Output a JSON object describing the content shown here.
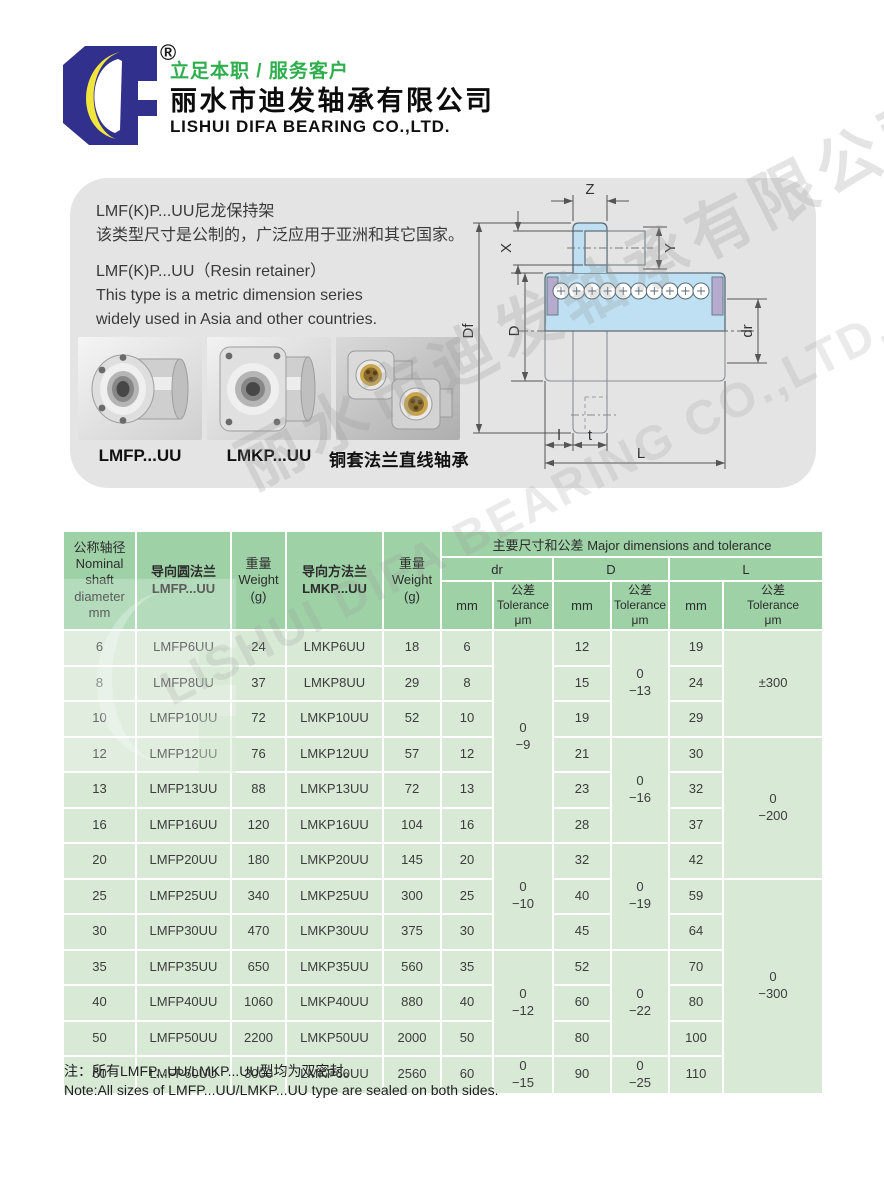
{
  "header": {
    "registered": "®",
    "slogan": "立足本职 / 服务客户",
    "company_cn": "丽水市迪发轴承有限公司",
    "company_en": "LISHUI DIFA BEARING CO.,LTD.",
    "logo_colors": {
      "blue": "#32308d",
      "yellow": "#f0e63c"
    }
  },
  "intro_panel": {
    "cn_title": "LMF(K)P...UU尼龙保持架",
    "cn_desc": "该类型尺寸是公制的，广泛应用于亚洲和其它国家。",
    "en_title": "LMF(K)P...UU（Resin retainer）",
    "en_desc1": "This type is a metric dimension series",
    "en_desc2": "widely used in Asia and other countries.",
    "products": [
      {
        "label": "LMFP...UU"
      },
      {
        "label": "LMKP...UU"
      },
      {
        "label": "铜套法兰直线轴承"
      }
    ],
    "diagram_labels": {
      "z": "Z",
      "x": "X",
      "y": "Y",
      "df": "Df",
      "d": "D",
      "dr": "dr",
      "l": "l",
      "t": "t",
      "L": "L"
    }
  },
  "watermark": {
    "cn": "丽水市迪发轴承有限公司",
    "en": "LISHUI DIFA BEARING CO.,LTD."
  },
  "table": {
    "colors": {
      "header_bg": "#9fd1a7",
      "body_bg": "#d8e9d6",
      "grid": "#ffffff"
    },
    "headers": {
      "shaft": "公称轴径\nNominal\nshaft\ndiameter\nmm",
      "round_flange": "导向圆法兰\nLMFP...UU",
      "weight1": "重量\nWeight\n(g)",
      "square_flange": "导向方法兰\nLMKP...UU",
      "weight2": "重量\nWeight\n(g)",
      "major_cn": "主要尺寸和公差",
      "major_en": "Major dimensions and tolerance",
      "dr": "dr",
      "D": "D",
      "L": "L",
      "mm": "mm",
      "tol": "公差\nTolerance\nμm"
    },
    "rows": [
      [
        {
          "t": "6"
        },
        {
          "t": "LMFP6UU"
        },
        {
          "t": "24"
        },
        {
          "t": "LMKP6UU"
        },
        {
          "t": "18"
        },
        {
          "t": "6"
        },
        {
          "t": "0|−9",
          "rs": 6
        },
        {
          "t": "12"
        },
        {
          "t": "0|−13",
          "rs": 3
        },
        {
          "t": "19"
        },
        {
          "t": "±300",
          "rs": 3
        }
      ],
      [
        {
          "t": "8"
        },
        {
          "t": "LMFP8UU"
        },
        {
          "t": "37"
        },
        {
          "t": "LMKP8UU"
        },
        {
          "t": "29"
        },
        {
          "t": "8"
        },
        {
          "t": "15"
        },
        {
          "t": "24"
        }
      ],
      [
        {
          "t": "10"
        },
        {
          "t": "LMFP10UU"
        },
        {
          "t": "72"
        },
        {
          "t": "LMKP10UU"
        },
        {
          "t": "52"
        },
        {
          "t": "10"
        },
        {
          "t": "19"
        },
        {
          "t": "29"
        }
      ],
      [
        {
          "t": "12"
        },
        {
          "t": "LMFP12UU"
        },
        {
          "t": "76"
        },
        {
          "t": "LMKP12UU"
        },
        {
          "t": "57"
        },
        {
          "t": "12"
        },
        {
          "t": "21"
        },
        {
          "t": "0|−16",
          "rs": 3
        },
        {
          "t": "30"
        },
        {
          "t": "0|−200",
          "rs": 4
        }
      ],
      [
        {
          "t": "13"
        },
        {
          "t": "LMFP13UU"
        },
        {
          "t": "88"
        },
        {
          "t": "LMKP13UU"
        },
        {
          "t": "72"
        },
        {
          "t": "13"
        },
        {
          "t": "23"
        },
        {
          "t": "32"
        }
      ],
      [
        {
          "t": "16"
        },
        {
          "t": "LMFP16UU"
        },
        {
          "t": "120"
        },
        {
          "t": "LMKP16UU"
        },
        {
          "t": "104"
        },
        {
          "t": "16"
        },
        {
          "t": "28"
        },
        {
          "t": "37"
        }
      ],
      [
        {
          "t": "20"
        },
        {
          "t": "LMFP20UU"
        },
        {
          "t": "180"
        },
        {
          "t": "LMKP20UU"
        },
        {
          "t": "145"
        },
        {
          "t": "20"
        },
        {
          "t": "0|−10",
          "rs": 3
        },
        {
          "t": "32"
        },
        {
          "t": "0|−19",
          "rs": 3
        },
        {
          "t": "42"
        }
      ],
      [
        {
          "t": "25"
        },
        {
          "t": "LMFP25UU"
        },
        {
          "t": "340"
        },
        {
          "t": "LMKP25UU"
        },
        {
          "t": "300"
        },
        {
          "t": "25"
        },
        {
          "t": "40"
        },
        {
          "t": "59"
        },
        {
          "t": "0|−300",
          "rs": 6
        }
      ],
      [
        {
          "t": "30"
        },
        {
          "t": "LMFP30UU"
        },
        {
          "t": "470"
        },
        {
          "t": "LMKP30UU"
        },
        {
          "t": "375"
        },
        {
          "t": "30"
        },
        {
          "t": "45"
        },
        {
          "t": "64"
        }
      ],
      [
        {
          "t": "35"
        },
        {
          "t": "LMFP35UU"
        },
        {
          "t": "650"
        },
        {
          "t": "LMKP35UU"
        },
        {
          "t": "560"
        },
        {
          "t": "35"
        },
        {
          "t": "0|−12",
          "rs": 3
        },
        {
          "t": "52"
        },
        {
          "t": "0|−22",
          "rs": 3
        },
        {
          "t": "70"
        }
      ],
      [
        {
          "t": "40"
        },
        {
          "t": "LMFP40UU"
        },
        {
          "t": "1060"
        },
        {
          "t": "LMKP40UU"
        },
        {
          "t": "880"
        },
        {
          "t": "40"
        },
        {
          "t": "60"
        },
        {
          "t": "80"
        }
      ],
      [
        {
          "t": "50"
        },
        {
          "t": "LMFP50UU"
        },
        {
          "t": "2200"
        },
        {
          "t": "LMKP50UU"
        },
        {
          "t": "2000"
        },
        {
          "t": "50"
        },
        {
          "t": "80"
        },
        {
          "t": "100"
        }
      ],
      [
        {
          "t": "60"
        },
        {
          "t": "LMFP60UU"
        },
        {
          "t": "3000"
        },
        {
          "t": "LMKP60UU"
        },
        {
          "t": "2560"
        },
        {
          "t": "60"
        },
        {
          "t": "0|−15"
        },
        {
          "t": "90"
        },
        {
          "t": "0|−25"
        },
        {
          "t": "110"
        }
      ]
    ]
  },
  "notes": {
    "cn": "注：所有LMFP...UU/LMKP...UU型均为双密封。",
    "en": "Note:All sizes of LMFP...UU/LMKP...UU type are sealed on both sides."
  }
}
